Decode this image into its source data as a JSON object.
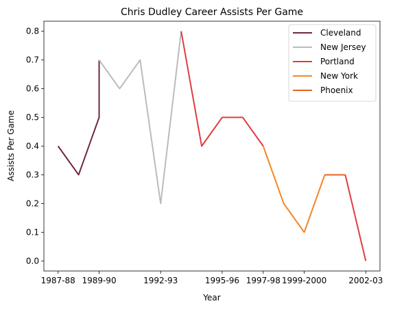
{
  "chart_data": {
    "type": "line",
    "title": "Chris Dudley Career Assists Per Game",
    "xlabel": "Year",
    "ylabel": "Assists Per Game",
    "x_ticks": [
      "1987-88",
      "1989-90",
      "1992-93",
      "1995-96",
      "1997-98",
      "1999-2000",
      "2002-03"
    ],
    "y_ticks": [
      "0.0",
      "0.1",
      "0.2",
      "0.3",
      "0.4",
      "0.5",
      "0.6",
      "0.7",
      "0.8"
    ],
    "ylim": [
      -0.035,
      0.835
    ],
    "grid": false,
    "legend_position": "top-right",
    "series": [
      {
        "name": "Cleveland",
        "color": "#6f263d",
        "points": [
          {
            "x": "1987-88",
            "y": 0.4
          },
          {
            "x": "1988-89",
            "y": 0.3
          },
          {
            "x": "1989-90",
            "y": 0.5
          },
          {
            "x": "1989-90",
            "y": 0.7
          }
        ]
      },
      {
        "name": "New Jersey",
        "color": "#bbbbbb",
        "points": [
          {
            "x": "1989-90",
            "y": 0.7
          },
          {
            "x": "1990-91",
            "y": 0.6
          },
          {
            "x": "1991-92",
            "y": 0.7
          },
          {
            "x": "1992-93",
            "y": 0.2
          },
          {
            "x": "1993-94",
            "y": 0.8
          }
        ]
      },
      {
        "name": "Portland",
        "color": "#e03a3e",
        "points": [
          {
            "x": "1993-94",
            "y": 0.8
          },
          {
            "x": "1994-95",
            "y": 0.4
          },
          {
            "x": "1995-96",
            "y": 0.5
          },
          {
            "x": "1996-97",
            "y": 0.5
          },
          {
            "x": "1997-98",
            "y": 0.4
          }
        ]
      },
      {
        "name": "New York",
        "color": "#f58426",
        "points": [
          {
            "x": "1997-98",
            "y": 0.4
          },
          {
            "x": "1998-99",
            "y": 0.2
          },
          {
            "x": "1999-2000",
            "y": 0.1
          },
          {
            "x": "2000-01",
            "y": 0.3
          },
          {
            "x": "2001-02",
            "y": 0.3
          }
        ]
      },
      {
        "name": "Phoenix",
        "color": "#e56020",
        "points": [
          {
            "x": "2000-01",
            "y": 0.3
          },
          {
            "x": "2001-02",
            "y": 0.3
          }
        ]
      },
      {
        "name": "Portland",
        "legend": false,
        "color": "#e03a3e",
        "points": [
          {
            "x": "2001-02",
            "y": 0.3
          },
          {
            "x": "2002-03",
            "y": 0.0
          }
        ]
      }
    ]
  }
}
